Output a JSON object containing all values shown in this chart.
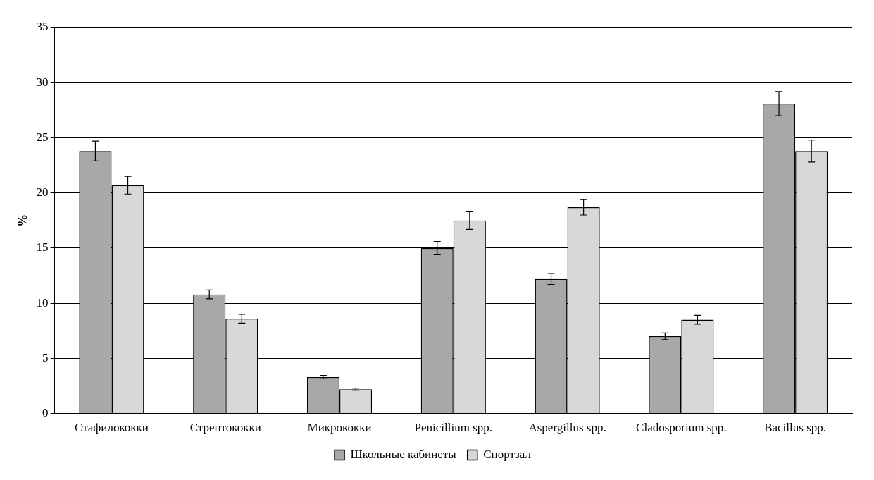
{
  "chart_data": {
    "type": "bar",
    "ylabel": "%",
    "categories": [
      "Стафилококки",
      "Стрептококки",
      "Микрококки",
      "Penicillium spp.",
      "Aspergillus spp.",
      "Cladosporium spp.",
      "Bacillus spp."
    ],
    "series": [
      {
        "name": "Школьные кабинеты",
        "color": "#a8a8a8",
        "values": [
          23.8,
          10.8,
          3.3,
          15.0,
          12.2,
          7.0,
          28.1
        ],
        "errors": [
          0.9,
          0.4,
          0.15,
          0.6,
          0.5,
          0.3,
          1.1
        ]
      },
      {
        "name": "Спортзал",
        "color": "#d8d8d8",
        "values": [
          20.7,
          8.6,
          2.2,
          17.5,
          18.7,
          8.5,
          23.8
        ],
        "errors": [
          0.8,
          0.4,
          0.1,
          0.8,
          0.7,
          0.4,
          1.0
        ]
      }
    ],
    "ylim": [
      0,
      35
    ],
    "yticks": [
      0,
      5,
      10,
      15,
      20,
      25,
      30,
      35
    ],
    "grid": "y",
    "legend": "bottom"
  }
}
